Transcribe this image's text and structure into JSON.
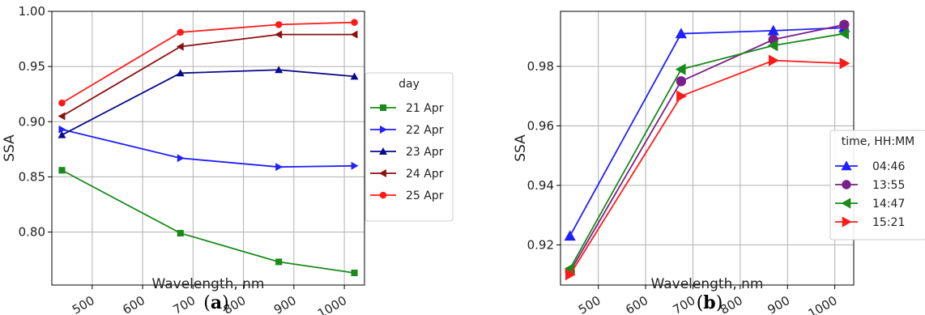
{
  "chart_data": [
    {
      "type": "line",
      "panel_label_open": "(",
      "panel_label_letter": "a",
      "panel_label_close": ")",
      "xlabel": "Wavelength, nm",
      "ylabel": "SSA",
      "xlim": [
        420,
        1040
      ],
      "ylim": [
        0.752,
        1.0
      ],
      "xticks": [
        500,
        600,
        700,
        800,
        900,
        1000
      ],
      "yticks": [
        0.8,
        0.85,
        0.9,
        0.95,
        1.0
      ],
      "ytick_labels": [
        "0.80",
        "0.85",
        "0.90",
        "0.95",
        "1.00"
      ],
      "grid": true,
      "legend_title": "day",
      "legend_placement": "right",
      "x": [
        440,
        675,
        870,
        1020
      ],
      "series": [
        {
          "name": "21 Apr",
          "color": "#1a8a1a",
          "marker": "square",
          "values": [
            0.856,
            0.799,
            0.773,
            0.763
          ]
        },
        {
          "name": "22 Apr",
          "color": "#1f1fff",
          "marker": "triangle-right",
          "values": [
            0.893,
            0.867,
            0.859,
            0.86
          ]
        },
        {
          "name": "23 Apr",
          "color": "#0a0a8a",
          "marker": "triangle-up",
          "values": [
            0.888,
            0.944,
            0.947,
            0.941
          ]
        },
        {
          "name": "24 Apr",
          "color": "#8b1010",
          "marker": "triangle-left",
          "values": [
            0.905,
            0.968,
            0.979,
            0.979
          ]
        },
        {
          "name": "25 Apr",
          "color": "#ff1a1a",
          "marker": "circle",
          "values": [
            0.917,
            0.981,
            0.988,
            0.99
          ]
        }
      ]
    },
    {
      "type": "line",
      "panel_label_open": "(",
      "panel_label_letter": "b",
      "panel_label_close": ")",
      "xlabel": "Wavelength, nm",
      "ylabel": "SSA",
      "xlim": [
        420,
        1040
      ],
      "ylim": [
        0.9065,
        0.9985
      ],
      "xticks": [
        500,
        600,
        700,
        800,
        900,
        1000
      ],
      "yticks": [
        0.92,
        0.94,
        0.96,
        0.98
      ],
      "ytick_labels": [
        "0.92",
        "0.94",
        "0.96",
        "0.98"
      ],
      "grid": true,
      "legend_title": "time, HH:MM",
      "legend_placement": "right",
      "x": [
        440,
        675,
        870,
        1020
      ],
      "series": [
        {
          "name": "04:46",
          "color": "#1f1fff",
          "marker": "triangle-up",
          "values": [
            0.923,
            0.991,
            0.992,
            0.993
          ]
        },
        {
          "name": "13:55",
          "color": "#7a1f8a",
          "marker": "circle",
          "values": [
            0.911,
            0.975,
            0.989,
            0.994
          ]
        },
        {
          "name": "14:47",
          "color": "#1a8a1a",
          "marker": "triangle-left",
          "values": [
            0.912,
            0.979,
            0.987,
            0.991
          ]
        },
        {
          "name": "15:21",
          "color": "#ff1a1a",
          "marker": "triangle-right",
          "values": [
            0.91,
            0.97,
            0.982,
            0.981
          ]
        }
      ]
    }
  ]
}
